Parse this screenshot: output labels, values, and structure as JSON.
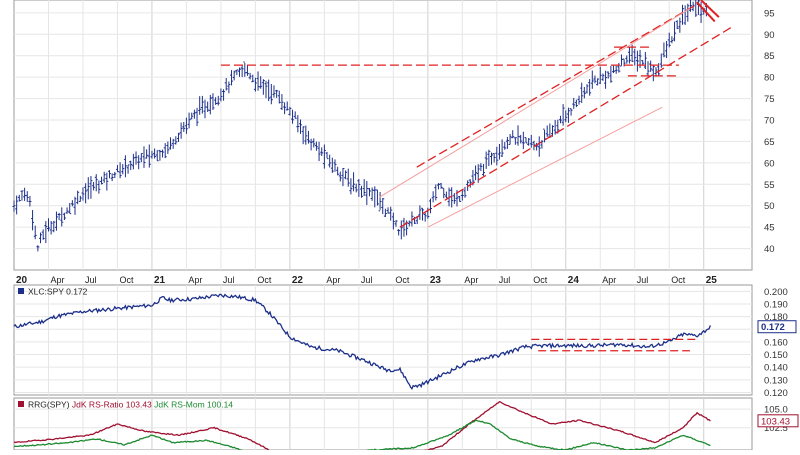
{
  "chart_data": [
    {
      "type": "ohlc",
      "panel": "price",
      "y_axis_side": "right",
      "ylim": [
        35,
        98
      ],
      "y_ticks": [
        "95",
        "90",
        "85",
        "80",
        "75",
        "70",
        "65",
        "60",
        "55",
        "50",
        "45",
        "40"
      ],
      "x_range": [
        2020.0,
        2025.35
      ],
      "x_ticks": [
        {
          "label": "20",
          "x": 2020.0,
          "bold": true
        },
        {
          "label": "Apr",
          "x": 2020.25,
          "bold": false
        },
        {
          "label": "Jul",
          "x": 2020.5,
          "bold": false
        },
        {
          "label": "Oct",
          "x": 2020.75,
          "bold": false
        },
        {
          "label": "21",
          "x": 2021.0,
          "bold": true
        },
        {
          "label": "Apr",
          "x": 2021.25,
          "bold": false
        },
        {
          "label": "Jul",
          "x": 2021.5,
          "bold": false
        },
        {
          "label": "Oct",
          "x": 2021.75,
          "bold": false
        },
        {
          "label": "22",
          "x": 2022.0,
          "bold": true
        },
        {
          "label": "Apr",
          "x": 2022.25,
          "bold": false
        },
        {
          "label": "Jul",
          "x": 2022.5,
          "bold": false
        },
        {
          "label": "Oct",
          "x": 2022.75,
          "bold": false
        },
        {
          "label": "23",
          "x": 2023.0,
          "bold": true
        },
        {
          "label": "Apr",
          "x": 2023.25,
          "bold": false
        },
        {
          "label": "Jul",
          "x": 2023.5,
          "bold": false
        },
        {
          "label": "Oct",
          "x": 2023.75,
          "bold": false
        },
        {
          "label": "24",
          "x": 2024.0,
          "bold": true
        },
        {
          "label": "Apr",
          "x": 2024.25,
          "bold": false
        },
        {
          "label": "Jul",
          "x": 2024.5,
          "bold": false
        },
        {
          "label": "Oct",
          "x": 2024.75,
          "bold": false
        },
        {
          "label": "25",
          "x": 2025.0,
          "bold": true
        }
      ],
      "grid": true,
      "bar_color": "#1c2f8a",
      "anchors": [
        [
          2020.0,
          50
        ],
        [
          2020.08,
          53
        ],
        [
          2020.12,
          51
        ],
        [
          2020.17,
          40
        ],
        [
          2020.22,
          44
        ],
        [
          2020.33,
          47
        ],
        [
          2020.5,
          53
        ],
        [
          2020.75,
          58
        ],
        [
          2020.92,
          61
        ],
        [
          2021.1,
          63
        ],
        [
          2021.3,
          71
        ],
        [
          2021.5,
          76
        ],
        [
          2021.6,
          80
        ],
        [
          2021.68,
          82
        ],
        [
          2021.75,
          79
        ],
        [
          2021.9,
          76
        ],
        [
          2022.0,
          72
        ],
        [
          2022.15,
          65
        ],
        [
          2022.3,
          60
        ],
        [
          2022.45,
          55
        ],
        [
          2022.6,
          53
        ],
        [
          2022.72,
          48
        ],
        [
          2022.8,
          44
        ],
        [
          2022.9,
          47
        ],
        [
          2023.0,
          48
        ],
        [
          2023.08,
          55
        ],
        [
          2023.2,
          51
        ],
        [
          2023.3,
          55
        ],
        [
          2023.45,
          61
        ],
        [
          2023.6,
          66
        ],
        [
          2023.7,
          65
        ],
        [
          2023.8,
          64
        ],
        [
          2024.0,
          71
        ],
        [
          2024.2,
          79
        ],
        [
          2024.35,
          81
        ],
        [
          2024.45,
          85
        ],
        [
          2024.55,
          84
        ],
        [
          2024.65,
          81
        ],
        [
          2024.75,
          88
        ],
        [
          2024.85,
          94
        ],
        [
          2024.92,
          97
        ],
        [
          2025.03,
          95
        ]
      ],
      "lines": [
        {
          "kind": "horizontal-resistance",
          "style": "dashed",
          "color": "#e02020",
          "y": 82.8,
          "x0": 2021.5,
          "x1": 2024.82
        },
        {
          "kind": "horizontal-resistance",
          "style": "dashed",
          "color": "#e02020",
          "y": 87.0,
          "x0": 2024.35,
          "x1": 2024.62
        },
        {
          "kind": "horizontal-support",
          "style": "dashed",
          "color": "#e02020",
          "y": 80.3,
          "x0": 2024.45,
          "x1": 2024.82
        },
        {
          "kind": "channel-upper",
          "style": "dashed",
          "color": "#e02020",
          "from": [
            2022.92,
            59
          ],
          "to": [
            2024.95,
            97
          ]
        },
        {
          "kind": "channel-lower",
          "style": "dashed",
          "color": "#e02020",
          "from": [
            2022.8,
            45
          ],
          "to": [
            2025.22,
            92
          ]
        },
        {
          "kind": "channel-inner",
          "style": "solid-faint",
          "color": "#f4a0a0",
          "from": [
            2022.65,
            52
          ],
          "to": [
            2024.9,
            96
          ]
        },
        {
          "kind": "channel-outer",
          "style": "solid-faint",
          "color": "#f4a0a0",
          "from": [
            2023.0,
            45
          ],
          "to": [
            2024.7,
            73
          ]
        },
        {
          "kind": "break-line",
          "style": "solid",
          "color": "#e02020",
          "from": [
            2024.95,
            97.5
          ],
          "to": [
            2025.08,
            93
          ]
        },
        {
          "kind": "break-line",
          "style": "solid",
          "color": "#e02020",
          "from": [
            2024.98,
            98
          ],
          "to": [
            2025.11,
            94
          ]
        }
      ]
    },
    {
      "type": "line",
      "panel": "relative-strength",
      "legend": "XLC:SPY 0.172",
      "legend_swatch": "#1c2f8a",
      "series": [
        {
          "name": "XLC:SPY",
          "color": "#1c2f8a"
        }
      ],
      "y_axis_side": "right",
      "ylim": [
        0.118,
        0.205
      ],
      "y_ticks": [
        "0.200",
        "0.190",
        "0.180",
        "0.170",
        "0.160",
        "0.150",
        "0.140",
        "0.130",
        "0.120"
      ],
      "last_value_box": "0.172",
      "last_value": 0.172,
      "anchors": [
        [
          2020.0,
          0.172
        ],
        [
          2020.1,
          0.174
        ],
        [
          2020.2,
          0.176
        ],
        [
          2020.3,
          0.18
        ],
        [
          2020.5,
          0.184
        ],
        [
          2020.7,
          0.186
        ],
        [
          2020.9,
          0.188
        ],
        [
          2021.0,
          0.189
        ],
        [
          2021.08,
          0.195
        ],
        [
          2021.12,
          0.193
        ],
        [
          2021.3,
          0.194
        ],
        [
          2021.5,
          0.197
        ],
        [
          2021.6,
          0.196
        ],
        [
          2021.75,
          0.193
        ],
        [
          2021.85,
          0.183
        ],
        [
          2022.0,
          0.164
        ],
        [
          2022.15,
          0.156
        ],
        [
          2022.35,
          0.153
        ],
        [
          2022.55,
          0.145
        ],
        [
          2022.7,
          0.138
        ],
        [
          2022.8,
          0.138
        ],
        [
          2022.88,
          0.124
        ],
        [
          2022.95,
          0.126
        ],
        [
          2023.05,
          0.131
        ],
        [
          2023.2,
          0.139
        ],
        [
          2023.35,
          0.146
        ],
        [
          2023.5,
          0.149
        ],
        [
          2023.7,
          0.156
        ],
        [
          2023.85,
          0.157
        ],
        [
          2024.0,
          0.157
        ],
        [
          2024.2,
          0.157
        ],
        [
          2024.4,
          0.158
        ],
        [
          2024.6,
          0.156
        ],
        [
          2024.75,
          0.16
        ],
        [
          2024.85,
          0.166
        ],
        [
          2024.95,
          0.165
        ],
        [
          2025.0,
          0.168
        ],
        [
          2025.05,
          0.172
        ]
      ],
      "lines": [
        {
          "style": "dashed",
          "color": "#e02020",
          "y": 0.162,
          "x0": 2023.75,
          "x1": 2024.95
        },
        {
          "style": "dashed",
          "color": "#e02020",
          "y": 0.153,
          "x0": 2023.8,
          "x1": 2024.9
        }
      ]
    },
    {
      "type": "line",
      "panel": "rrg",
      "legend": {
        "prefix": "RRG(SPY)",
        "ratio": "JdK RS-Ratio 103.43",
        "momentum": "JdK RS-Mom 100.14"
      },
      "y_axis_side": "right",
      "ylim": [
        99.5,
        106.5
      ],
      "y_ticks": [
        "105.0",
        "102.5"
      ],
      "last_value_box": "103.43",
      "last_value": 103.43,
      "series": [
        {
          "name": "JdK RS-Ratio",
          "color": "#a01030",
          "anchors": [
            [
              2020.0,
              100.5
            ],
            [
              2020.3,
              101.0
            ],
            [
              2020.55,
              101.5
            ],
            [
              2020.75,
              103.0
            ],
            [
              2020.95,
              102.0
            ],
            [
              2021.2,
              101.5
            ],
            [
              2021.45,
              102.5
            ],
            [
              2021.7,
              101.0
            ],
            [
              2021.9,
              99.0
            ],
            [
              2022.2,
              97.0
            ],
            [
              2022.5,
              98.0
            ],
            [
              2022.8,
              98.5
            ],
            [
              2023.1,
              100.0
            ],
            [
              2023.3,
              103.0
            ],
            [
              2023.52,
              106.0
            ],
            [
              2023.7,
              104.5
            ],
            [
              2023.9,
              103.0
            ],
            [
              2024.1,
              103.5
            ],
            [
              2024.4,
              102.0
            ],
            [
              2024.65,
              100.5
            ],
            [
              2024.85,
              102.5
            ],
            [
              2024.95,
              104.5
            ],
            [
              2025.05,
              103.43
            ]
          ]
        },
        {
          "name": "JdK RS-Mom",
          "color": "#1c8a30",
          "anchors": [
            [
              2020.0,
              100.0
            ],
            [
              2020.2,
              100.2
            ],
            [
              2020.4,
              100.5
            ],
            [
              2020.6,
              101.0
            ],
            [
              2020.8,
              100.2
            ],
            [
              2021.0,
              101.5
            ],
            [
              2021.15,
              100.5
            ],
            [
              2021.4,
              100.8
            ],
            [
              2021.6,
              99.8
            ],
            [
              2021.8,
              98.5
            ],
            [
              2022.0,
              98.0
            ],
            [
              2022.3,
              98.8
            ],
            [
              2022.6,
              99.5
            ],
            [
              2022.9,
              99.8
            ],
            [
              2023.15,
              101.5
            ],
            [
              2023.35,
              103.5
            ],
            [
              2023.45,
              103.0
            ],
            [
              2023.6,
              101.0
            ],
            [
              2023.8,
              100.0
            ],
            [
              2024.0,
              99.5
            ],
            [
              2024.2,
              100.5
            ],
            [
              2024.45,
              99.5
            ],
            [
              2024.65,
              99.8
            ],
            [
              2024.85,
              101.5
            ],
            [
              2025.05,
              100.14
            ]
          ]
        }
      ]
    }
  ]
}
